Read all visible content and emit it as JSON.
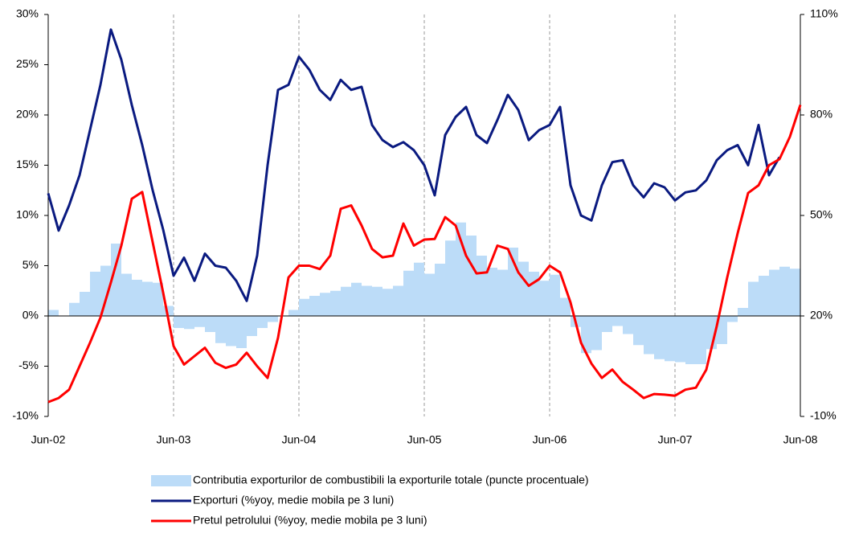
{
  "chart_data": {
    "type": "combo",
    "categories": [
      "Jun-02",
      null,
      null,
      null,
      null,
      null,
      null,
      null,
      null,
      null,
      null,
      null,
      "Jun-03",
      null,
      null,
      null,
      null,
      null,
      null,
      null,
      null,
      null,
      null,
      null,
      "Jun-04",
      null,
      null,
      null,
      null,
      null,
      null,
      null,
      null,
      null,
      null,
      null,
      "Jun-05",
      null,
      null,
      null,
      null,
      null,
      null,
      null,
      null,
      null,
      null,
      null,
      "Jun-06",
      null,
      null,
      null,
      null,
      null,
      null,
      null,
      null,
      null,
      null,
      null,
      "Jun-07",
      null,
      null,
      null,
      null,
      null,
      null,
      null,
      null,
      null,
      null,
      null,
      "Jun-08"
    ],
    "ylim": [
      -10,
      30
    ],
    "yticks": [
      {
        "value": -10,
        "label": "-10%"
      },
      {
        "value": -5,
        "label": "-5%"
      },
      {
        "value": 0,
        "label": "0%"
      },
      {
        "value": 5,
        "label": "5%"
      },
      {
        "value": 10,
        "label": "10%"
      },
      {
        "value": 15,
        "label": "15%"
      },
      {
        "value": 20,
        "label": "20%"
      },
      {
        "value": 25,
        "label": "25%"
      },
      {
        "value": 30,
        "label": "30%"
      }
    ],
    "y2lim": [
      -10,
      110
    ],
    "y2ticks": [
      {
        "value": -10,
        "label": "-10%"
      },
      {
        "value": 20,
        "label": "20%"
      },
      {
        "value": 50,
        "label": "50%"
      },
      {
        "value": 80,
        "label": "80%"
      },
      {
        "value": 110,
        "label": "110%"
      }
    ],
    "xgrid": true,
    "series": [
      {
        "name": "Contributia exporturilor de combustibili la exporturile totale  (puncte procentuale)",
        "type": "bar",
        "color": "#bcdcf8",
        "values": [
          0.6,
          0,
          1.3,
          2.4,
          4.4,
          5.0,
          7.2,
          4.2,
          3.6,
          3.4,
          3.3,
          1.0,
          -1.2,
          -1.3,
          -1.1,
          -1.6,
          -2.7,
          -3.0,
          -3.2,
          -2.0,
          -1.2,
          -0.6,
          0,
          0.6,
          1.7,
          2.0,
          2.3,
          2.5,
          2.9,
          3.3,
          3.0,
          2.9,
          2.7,
          3.0,
          4.5,
          5.3,
          4.2,
          5.2,
          7.5,
          9.3,
          8.0,
          6.0,
          4.8,
          4.6,
          6.8,
          5.4,
          4.4,
          3.5,
          4.1,
          1.8,
          -1.1,
          -3.7,
          -3.4,
          -1.6,
          -1.0,
          -1.8,
          -2.9,
          -3.8,
          -4.3,
          -4.5,
          -4.6,
          -4.8,
          -4.8,
          -3.3,
          -2.8,
          -0.6,
          0.8,
          3.4,
          4.0,
          4.6,
          4.9,
          4.7,
          null
        ]
      },
      {
        "name": "Exporturi (%yoy, medie mobila pe  3 luni)",
        "type": "line",
        "color": "#0a1a80",
        "values": [
          12.2,
          8.5,
          11,
          14,
          18.5,
          23,
          28.5,
          25.5,
          21,
          17,
          12.5,
          8.6,
          4,
          5.8,
          3.5,
          6.2,
          5.0,
          4.8,
          3.5,
          1.5,
          6,
          15,
          22.5,
          23,
          25.8,
          24.5,
          22.5,
          21.5,
          23.5,
          22.5,
          22.8,
          19,
          17.5,
          16.8,
          17.3,
          16.5,
          15,
          12,
          18,
          19.8,
          20.8,
          18,
          17.2,
          19.5,
          22,
          20.5,
          17.5,
          18.5,
          19,
          20.8,
          13,
          10,
          9.5,
          13,
          15.3,
          15.5,
          13,
          11.8,
          13.2,
          12.8,
          11.5,
          12.3,
          12.5,
          13.5,
          15.5,
          16.5,
          17,
          15,
          19,
          14,
          15.8,
          null,
          null
        ]
      },
      {
        "name": "Pretul petrolului (%yoy, medie mobila pe 3 luni)",
        "type": "line",
        "axis": "y2",
        "color": "#ff0000",
        "values": [
          -5.7,
          -4.5,
          -2,
          5,
          12,
          19.5,
          30,
          41,
          55,
          57,
          42,
          27,
          11,
          5.5,
          8,
          10.5,
          6,
          4.5,
          5.5,
          9,
          5,
          1.5,
          13.5,
          31.5,
          35,
          35,
          34,
          38,
          52,
          53,
          47,
          40,
          37.5,
          38,
          47.6,
          41,
          42.8,
          43,
          49.5,
          47,
          38,
          32.7,
          33,
          41,
          40,
          33,
          29,
          31,
          35,
          33,
          24,
          12,
          5.8,
          1.5,
          4,
          0.3,
          -2,
          -4.5,
          -3.3,
          -3.5,
          -3.8,
          -2,
          -1.4,
          4,
          17,
          31.5,
          44.7,
          56.7,
          59,
          65,
          66.8,
          73.5,
          83
        ]
      }
    ]
  }
}
